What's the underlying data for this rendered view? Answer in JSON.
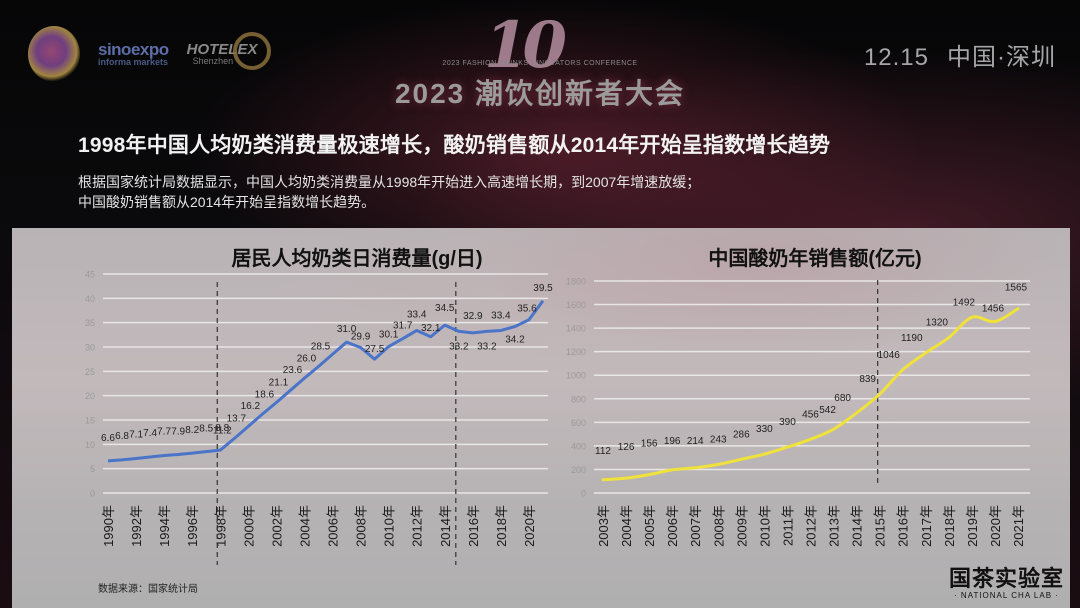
{
  "header": {
    "logos": [
      "flower-logo",
      "sinoexpo informa markets",
      "HOTELEX Shenzhen"
    ],
    "logo_text": {
      "sinoexpo_top": "sinoexpo",
      "sinoexpo_bottom": "informa markets",
      "hotelex": "HOTELEX",
      "hotelex_sub": "Shenzhen"
    },
    "event_mark": "10",
    "event_en": "2023 FASHION DRINKS INNOVATORS CONFERENCE",
    "event_cn": "2023 潮饮创新者大会",
    "date": "12.15",
    "location": "中国·深圳"
  },
  "slide": {
    "headline": "1998年中国人均奶类消费量极速增长，酸奶销售额从2014年开始呈指数增长趋势",
    "sub_line1": "根据国家统计局数据显示，中国人均奶类消费量从1998年开始进入高速增长期，到2007年增速放缓；",
    "sub_line2": "中国酸奶销售额从2014年开始呈指数增长趋势。",
    "source": "数据来源：国家统计局",
    "brand_cn": "国茶实验室",
    "brand_en": "· NATIONAL CHA LAB ·"
  },
  "colors": {
    "left_series": "#4a74c8",
    "right_series": "#f0e23a",
    "gridline": "#e8e6e6",
    "axis_tick_text": "#9a9a9a",
    "label_text": "#222222"
  },
  "chart_data": [
    {
      "type": "line",
      "title": "居民人均奶类日消费量(g/日)",
      "xlabel": "",
      "ylabel": "",
      "ylim": [
        0,
        45
      ],
      "yticks": [
        0,
        5,
        10,
        15,
        20,
        25,
        30,
        35,
        40,
        45
      ],
      "grid": true,
      "legend": "none",
      "x": [
        1990,
        1991,
        1992,
        1993,
        1994,
        1995,
        1996,
        1997,
        1998,
        1999,
        2000,
        2001,
        2002,
        2003,
        2004,
        2005,
        2006,
        2007,
        2008,
        2009,
        2010,
        2011,
        2012,
        2013,
        2014,
        2015,
        2016,
        2017,
        2018,
        2019,
        2020,
        2021
      ],
      "xtick_labels": [
        "1990年",
        "1992年",
        "1994年",
        "1996年",
        "1998年",
        "2000年",
        "2002年",
        "2004年",
        "2006年",
        "2008年",
        "2010年",
        "2012年",
        "2014年",
        "2016年",
        "2018年",
        "2020年"
      ],
      "values": [
        6.6,
        6.8,
        7.1,
        7.4,
        7.7,
        7.9,
        8.2,
        8.5,
        8.8,
        11.2,
        13.7,
        16.2,
        18.6,
        21.1,
        23.6,
        26.0,
        28.5,
        31.0,
        29.9,
        27.5,
        30.1,
        31.7,
        33.4,
        32.1,
        34.5,
        33.2,
        32.9,
        33.2,
        33.4,
        34.2,
        35.6,
        39.5
      ],
      "annotations": [
        "dashed vertical line at 1998",
        "dashed vertical line at 2015"
      ],
      "series_color": "#4a74c8"
    },
    {
      "type": "line",
      "title": "中国酸奶年销售额(亿元)",
      "xlabel": "",
      "ylabel": "",
      "ylim": [
        0,
        1800
      ],
      "yticks": [
        0,
        200,
        400,
        600,
        800,
        1000,
        1200,
        1400,
        1600,
        1800
      ],
      "grid": true,
      "legend": "none",
      "x": [
        2003,
        2004,
        2005,
        2006,
        2007,
        2008,
        2009,
        2010,
        2011,
        2012,
        2013,
        2014,
        2015,
        2016,
        2017,
        2018,
        2019,
        2020,
        2021
      ],
      "xtick_labels": [
        "2003年",
        "2004年",
        "2005年",
        "2006年",
        "2007年",
        "2008年",
        "2009年",
        "2010年",
        "2011年",
        "2012年",
        "2013年",
        "2014年",
        "2015年",
        "2016年",
        "2017年",
        "2018年",
        "2019年",
        "2020年",
        "2021年"
      ],
      "values": [
        112,
        126,
        156,
        196,
        214,
        243,
        286,
        330,
        390,
        456,
        542,
        680,
        839,
        1046,
        1190,
        1320,
        1492,
        1456,
        1565
      ],
      "annotations": [
        "dashed vertical line at 2015"
      ],
      "series_color": "#f0e23a"
    }
  ]
}
